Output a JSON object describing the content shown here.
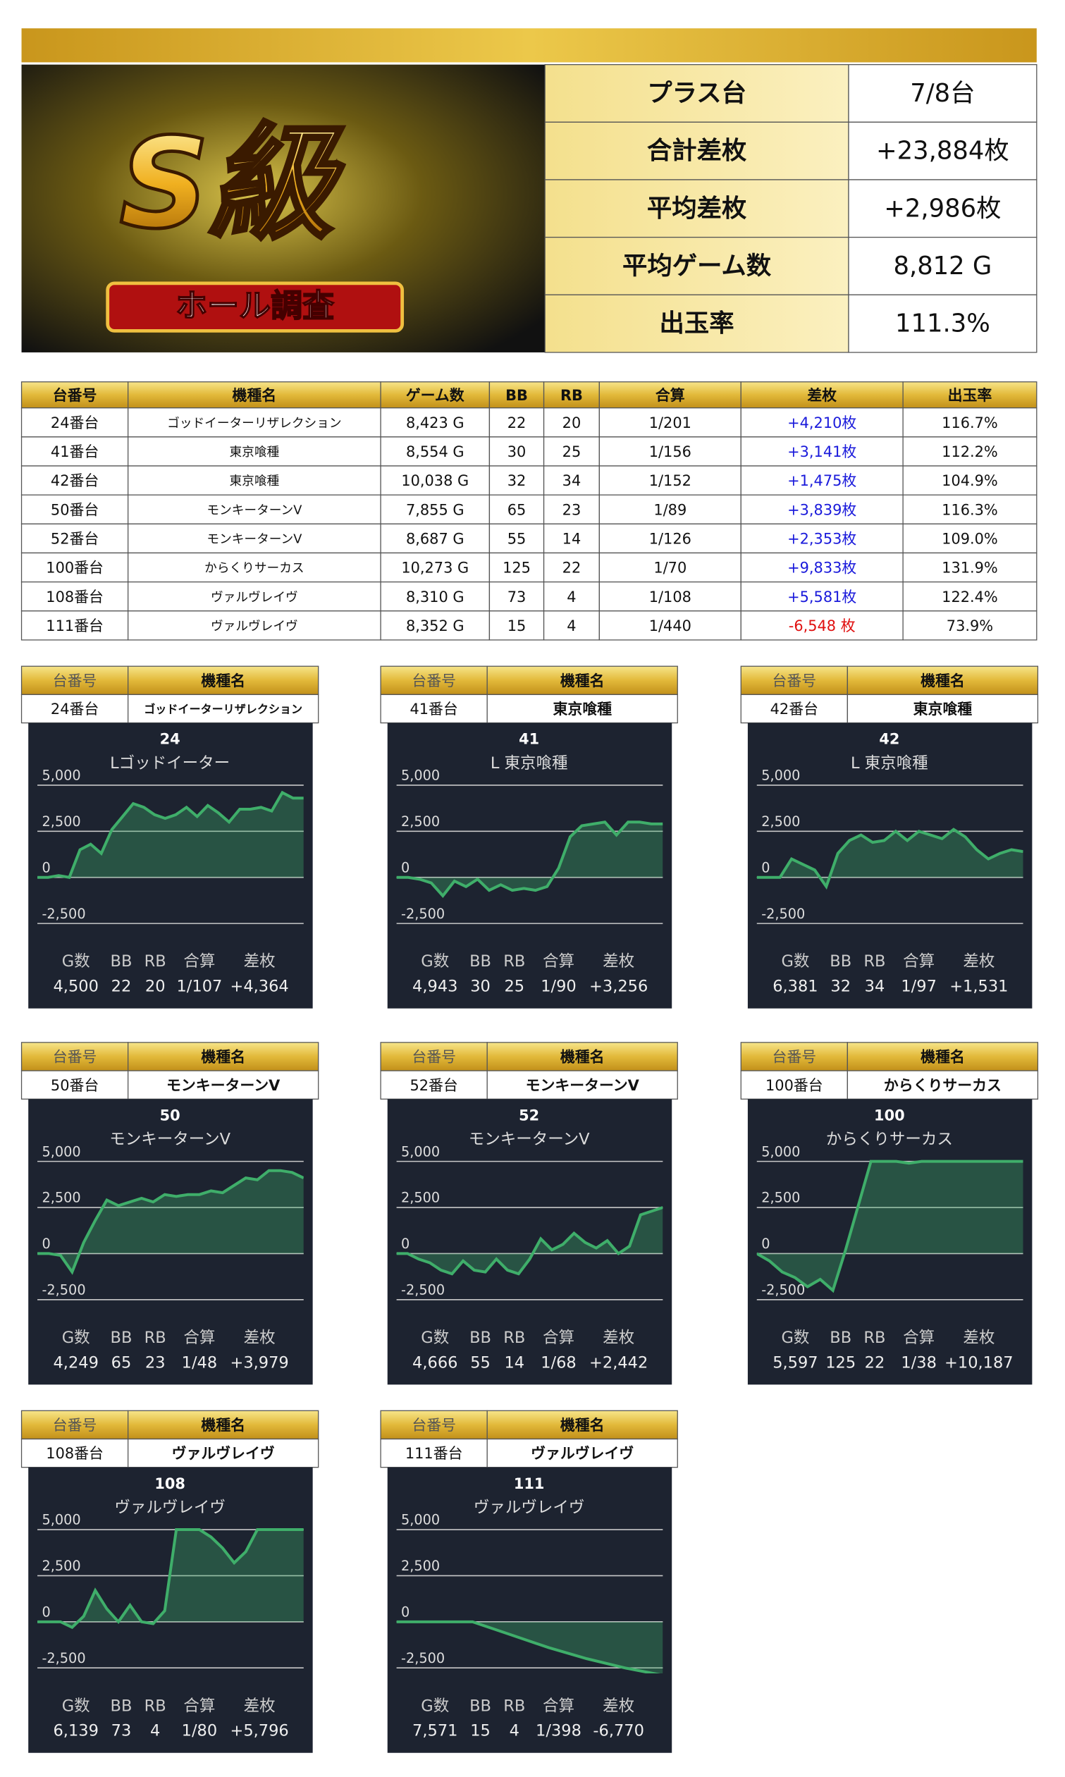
{
  "summary": {
    "banner_title": "S級",
    "banner_subtitle": "ホール調査",
    "rows": [
      [
        "プラス台",
        "7/8台"
      ],
      [
        "合計差枚",
        "+23,884枚"
      ],
      [
        "平均差枚",
        "+2,986枚"
      ],
      [
        "平均ゲーム数",
        "8,812 G"
      ],
      [
        "出玉率",
        "111.3%"
      ]
    ]
  },
  "table": {
    "header": [
      "台番号",
      "機種名",
      "ゲーム数",
      "BB",
      "RB",
      "合算",
      "差枚",
      "出玉率"
    ],
    "rows": [
      [
        "24番台",
        "ゴッドイーターリザレクション",
        "8,423 G",
        "22",
        "20",
        "1/201",
        "+4,210枚",
        "116.7%"
      ],
      [
        "41番台",
        "東京喰種",
        "8,554 G",
        "30",
        "25",
        "1/156",
        "+3,141枚",
        "112.2%"
      ],
      [
        "42番台",
        "東京喰種",
        "10,038 G",
        "32",
        "34",
        "1/152",
        "+1,475枚",
        "104.9%"
      ],
      [
        "50番台",
        "モンキーターンV",
        "7,855 G",
        "65",
        "23",
        "1/89",
        "+3,839枚",
        "116.3%"
      ],
      [
        "52番台",
        "モンキーターンV",
        "8,687 G",
        "55",
        "14",
        "1/126",
        "+2,353枚",
        "109.0%"
      ],
      [
        "100番台",
        "からくりサーカス",
        "10,273 G",
        "125",
        "22",
        "1/70",
        "+9,833枚",
        "131.9%"
      ],
      [
        "108番台",
        "ヴァルヴレイヴ",
        "8,310 G",
        "73",
        "4",
        "1/108",
        "+5,581枚",
        "122.4%"
      ],
      [
        "111番台",
        "ヴァルヴレイヴ",
        "8,352 G",
        "15",
        "4",
        "1/440",
        "-6,548 枚",
        "73.9%"
      ]
    ]
  },
  "panel_header": [
    "台番号",
    "機種名"
  ],
  "stats_labels": [
    "G数",
    "BB",
    "RB",
    "合算",
    "差枚"
  ],
  "chart_axis": {
    "ylim": [
      -2800,
      5300
    ],
    "yticks": [
      {
        "value": 5000,
        "label": "5,000"
      },
      {
        "value": 2500,
        "label": "2,500"
      },
      0,
      {
        "value": -2500,
        "label": "-2,500"
      }
    ],
    "color": "#3fae6a"
  },
  "panels": [
    {
      "number": "24番台",
      "model": "ゴッドイーターリザレクション",
      "chart": {
        "type": "area",
        "title": "24",
        "subtitle": "Lゴッドイーター",
        "values": [
          0,
          0,
          100,
          0,
          1500,
          1800,
          1300,
          2600,
          3300,
          4000,
          3800,
          3400,
          3200,
          3400,
          3800,
          3300,
          3900,
          3500,
          3000,
          3700,
          3700,
          3800,
          3600,
          4600,
          4300,
          4300
        ]
      },
      "stats": [
        "4,500",
        "22",
        "20",
        "1/107",
        "+4,364"
      ]
    },
    {
      "number": "41番台",
      "model": "東京喰種",
      "chart": {
        "type": "area",
        "title": "41",
        "subtitle": "L 東京喰種",
        "values": [
          0,
          0,
          -100,
          -300,
          -1000,
          -200,
          -500,
          -100,
          -700,
          -400,
          -700,
          -600,
          -700,
          -500,
          500,
          2200,
          2800,
          2900,
          3000,
          2300,
          3000,
          3000,
          2900,
          2900
        ]
      },
      "stats": [
        "4,943",
        "30",
        "25",
        "1/90",
        "+3,256"
      ]
    },
    {
      "number": "42番台",
      "model": "東京喰種",
      "chart": {
        "type": "area",
        "title": "42",
        "subtitle": "L 東京喰種",
        "values": [
          0,
          0,
          0,
          1000,
          700,
          400,
          -500,
          1300,
          2000,
          2300,
          1900,
          2000,
          2500,
          2000,
          2500,
          2300,
          2100,
          2600,
          2200,
          1500,
          1000,
          1300,
          1500,
          1400
        ]
      },
      "stats": [
        "6,381",
        "32",
        "34",
        "1/97",
        "+1,531"
      ]
    },
    {
      "number": "50番台",
      "model": "モンキーターンV",
      "chart": {
        "type": "area",
        "title": "50",
        "subtitle": "モンキーターンV",
        "values": [
          0,
          0,
          -100,
          -1000,
          600,
          1800,
          2900,
          2600,
          2800,
          3000,
          2800,
          3200,
          3100,
          3200,
          3200,
          3400,
          3300,
          3700,
          4100,
          4000,
          4500,
          4500,
          4400,
          4100
        ]
      },
      "stats": [
        "4,249",
        "65",
        "23",
        "1/48",
        "+3,979"
      ]
    },
    {
      "number": "52番台",
      "model": "モンキーターンV",
      "chart": {
        "type": "area",
        "title": "52",
        "subtitle": "モンキーターンV",
        "values": [
          0,
          0,
          -300,
          -500,
          -900,
          -1100,
          -400,
          -900,
          -1000,
          -300,
          -900,
          -1100,
          -300,
          800,
          200,
          500,
          1100,
          600,
          300,
          700,
          0,
          400,
          2100,
          2300,
          2500
        ]
      },
      "stats": [
        "4,666",
        "55",
        "14",
        "1/68",
        "+2,442"
      ]
    },
    {
      "number": "100番台",
      "model": "からくりサーカス",
      "chart": {
        "type": "area",
        "title": "100",
        "subtitle": "からくりサーカス",
        "values": [
          0,
          -400,
          -1000,
          -1300,
          -1800,
          -1400,
          -2000,
          200,
          2600,
          5000,
          5000,
          5000,
          4900,
          5000,
          5000,
          5000,
          5000,
          5000,
          5000,
          5000,
          5000,
          5000
        ]
      },
      "stats": [
        "5,597",
        "125",
        "22",
        "1/38",
        "+10,187"
      ]
    },
    {
      "number": "108番台",
      "model": "ヴァルヴレイヴ",
      "chart": {
        "type": "area",
        "title": "108",
        "subtitle": "ヴァルヴレイヴ",
        "values": [
          0,
          0,
          0,
          -300,
          300,
          1700,
          700,
          0,
          900,
          0,
          -100,
          600,
          5000,
          5000,
          5000,
          4600,
          4000,
          3200,
          3800,
          5000,
          5000,
          5000,
          5000,
          5000
        ]
      },
      "stats": [
        "6,139",
        "73",
        "4",
        "1/80",
        "+5,796"
      ]
    },
    {
      "number": "111番台",
      "model": "ヴァルヴレイヴ",
      "chart": {
        "type": "area",
        "title": "111",
        "subtitle": "ヴァルヴレイヴ",
        "values": [
          0,
          0,
          0,
          -700,
          -1400,
          -2000,
          -2500,
          -2900
        ]
      },
      "stats": [
        "7,571",
        "15",
        "4",
        "1/398",
        "-6,770"
      ]
    }
  ]
}
